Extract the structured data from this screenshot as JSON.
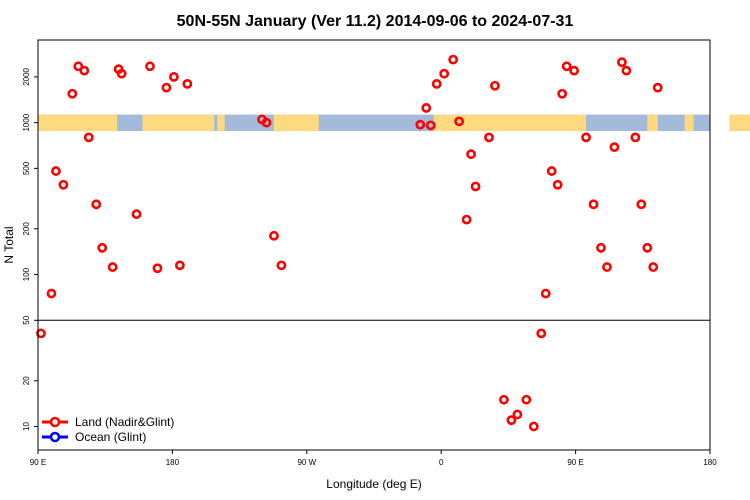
{
  "chart_data": {
    "type": "scatter",
    "title": "50N-55N January (Ver 11.2)   2014-09-06 to 2024-07-31",
    "xlabel": "Longitude (deg E)",
    "ylabel": "N Total",
    "x_ticks": [
      {
        "value": 90,
        "label": "90 E"
      },
      {
        "value": 180,
        "label": "180"
      },
      {
        "value": 270,
        "label": "90 W"
      },
      {
        "value": 360,
        "label": "0"
      },
      {
        "value": 450,
        "label": "90 E"
      },
      {
        "value": 540,
        "label": "180"
      }
    ],
    "xlim": [
      90,
      540
    ],
    "y_scale": "log",
    "ylim": [
      7,
      3500
    ],
    "y_ticks": [
      10,
      20,
      50,
      100,
      200,
      500,
      1000,
      2000
    ],
    "y_tick_labels": [
      "10",
      "20",
      "50",
      "100",
      "200",
      "500",
      "1000",
      "2000"
    ],
    "reference_line_y": 50,
    "surface_band": {
      "y_low": 880,
      "y_high": 1130,
      "land_color": "#FDD97F",
      "ocean_color": "#A4BADB",
      "land_segments": [
        [
          90,
          143
        ],
        [
          160,
          208
        ],
        [
          210,
          215
        ],
        [
          248,
          278
        ],
        [
          355,
          457
        ],
        [
          498,
          505
        ],
        [
          523,
          529
        ],
        [
          553,
          597
        ]
      ]
    },
    "colors": {
      "land": "#FF0000",
      "ocean": "#0000FF"
    },
    "legend_position": "bottom-left",
    "series": [
      {
        "name": "Land (Nadir&Glint)",
        "color": "#FF0000",
        "x": [
          92,
          99,
          102,
          107,
          113,
          117,
          121,
          124,
          129,
          133,
          140,
          144,
          146,
          156,
          165,
          170,
          176,
          181,
          185,
          190,
          240,
          243,
          248,
          253,
          346,
          350,
          353,
          357,
          362,
          368,
          372,
          377,
          380,
          383,
          392,
          396,
          402,
          407,
          411,
          417,
          422,
          427,
          430,
          434,
          438,
          441,
          444,
          449,
          457,
          462,
          467,
          471,
          476,
          481,
          484,
          490,
          494,
          498,
          502,
          505
        ],
        "y": [
          41,
          75,
          480,
          390,
          1550,
          2350,
          2200,
          800,
          290,
          150,
          112,
          2250,
          2100,
          250,
          2350,
          110,
          1700,
          2000,
          115,
          1800,
          1050,
          1000,
          180,
          115,
          970,
          1250,
          960,
          1800,
          2100,
          2600,
          1020,
          230,
          620,
          380,
          800,
          1750,
          15,
          11,
          12,
          15,
          10,
          41,
          75,
          480,
          390,
          1550,
          2350,
          2200,
          800,
          290,
          150,
          112,
          690,
          2500,
          2200,
          800,
          290,
          150,
          112,
          1700
        ]
      },
      {
        "name": "Ocean (Glint)",
        "color": "#0000FF",
        "x": [],
        "y": []
      }
    ]
  }
}
